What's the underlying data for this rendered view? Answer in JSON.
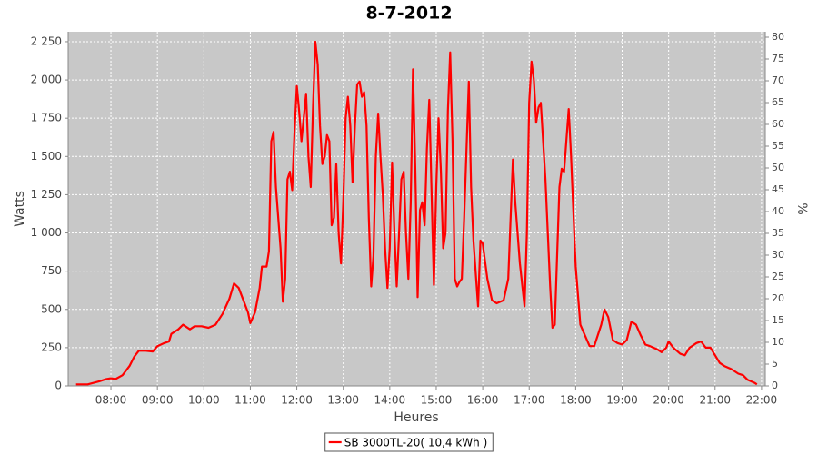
{
  "chart_data": {
    "type": "line",
    "title": "8-7-2012",
    "x_label": "Heures",
    "y_label": "Watts",
    "y2_label": "%",
    "xlim": [
      7.08,
      22.08
    ],
    "xticks": [
      {
        "value": 8,
        "label": "08:00"
      },
      {
        "value": 9,
        "label": "09:00"
      },
      {
        "value": 10,
        "label": "10:00"
      },
      {
        "value": 11,
        "label": "11:00"
      },
      {
        "value": 12,
        "label": "12:00"
      },
      {
        "value": 13,
        "label": "13:00"
      },
      {
        "value": 14,
        "label": "14:00"
      },
      {
        "value": 15,
        "label": "15:00"
      },
      {
        "value": 16,
        "label": "16:00"
      },
      {
        "value": 17,
        "label": "17:00"
      },
      {
        "value": 18,
        "label": "18:00"
      },
      {
        "value": 19,
        "label": "19:00"
      },
      {
        "value": 20,
        "label": "20:00"
      },
      {
        "value": 21,
        "label": "21:00"
      },
      {
        "value": 22,
        "label": "22:00"
      }
    ],
    "ylim": [
      0,
      2315
    ],
    "yticks": [
      0,
      250,
      500,
      750,
      {
        "value": 1000,
        "label": "1 000"
      },
      {
        "value": 1250,
        "label": "1 250"
      },
      {
        "value": 1500,
        "label": "1 500"
      },
      {
        "value": 1750,
        "label": "1 750"
      },
      {
        "value": 2000,
        "label": "2 000"
      },
      {
        "value": 2250,
        "label": "2 250"
      }
    ],
    "y2lim": [
      0,
      81.25
    ],
    "y2ticks": [
      0,
      5,
      10,
      15,
      20,
      25,
      30,
      35,
      40,
      45,
      50,
      55,
      60,
      65,
      70,
      75,
      80
    ],
    "grid": true,
    "legend": "bottom",
    "x": [
      7.25,
      7.5,
      7.75,
      7.9,
      8.0,
      8.1,
      8.25,
      8.4,
      8.5,
      8.6,
      8.75,
      8.9,
      9.0,
      9.15,
      9.25,
      9.3,
      9.45,
      9.55,
      9.7,
      9.8,
      9.95,
      10.1,
      10.25,
      10.4,
      10.55,
      10.65,
      10.75,
      10.85,
      10.95,
      11.0,
      11.1,
      11.2,
      11.25,
      11.35,
      11.4,
      11.45,
      11.5,
      11.55,
      11.65,
      11.7,
      11.75,
      11.8,
      11.85,
      11.9,
      11.95,
      12.0,
      12.05,
      12.1,
      12.2,
      12.25,
      12.3,
      12.35,
      12.4,
      12.45,
      12.5,
      12.55,
      12.6,
      12.65,
      12.7,
      12.75,
      12.8,
      12.85,
      12.9,
      12.95,
      13.0,
      13.05,
      13.1,
      13.15,
      13.2,
      13.25,
      13.3,
      13.35,
      13.4,
      13.45,
      13.5,
      13.55,
      13.6,
      13.65,
      13.7,
      13.75,
      13.8,
      13.85,
      13.9,
      13.95,
      14.0,
      14.05,
      14.1,
      14.15,
      14.2,
      14.25,
      14.3,
      14.35,
      14.4,
      14.45,
      14.5,
      14.55,
      14.6,
      14.65,
      14.7,
      14.75,
      14.8,
      14.85,
      14.9,
      14.95,
      15.0,
      15.05,
      15.1,
      15.15,
      15.2,
      15.25,
      15.3,
      15.35,
      15.4,
      15.45,
      15.5,
      15.55,
      15.6,
      15.7,
      15.75,
      15.8,
      15.9,
      15.95,
      16.0,
      16.1,
      16.2,
      16.3,
      16.45,
      16.55,
      16.6,
      16.65,
      16.7,
      16.8,
      16.9,
      16.95,
      17.0,
      17.05,
      17.1,
      17.15,
      17.2,
      17.25,
      17.35,
      17.45,
      17.5,
      17.55,
      17.65,
      17.7,
      17.75,
      17.85,
      17.9,
      18.0,
      18.1,
      18.2,
      18.3,
      18.4,
      18.55,
      18.62,
      18.7,
      18.8,
      18.9,
      19.0,
      19.1,
      19.2,
      19.3,
      19.4,
      19.5,
      19.6,
      19.75,
      19.85,
      19.95,
      20.0,
      20.1,
      20.25,
      20.35,
      20.45,
      20.6,
      20.7,
      20.8,
      20.9,
      21.0,
      21.1,
      21.2,
      21.35,
      21.5,
      21.6,
      21.7,
      21.85,
      21.9
    ],
    "series": [
      {
        "name": "SB 3000TL-20( 10,4 kWh )",
        "color": "#ff0000",
        "values": [
          10,
          10,
          30,
          45,
          50,
          45,
          70,
          130,
          190,
          230,
          230,
          225,
          260,
          280,
          290,
          340,
          370,
          400,
          370,
          390,
          390,
          380,
          400,
          470,
          570,
          670,
          640,
          560,
          480,
          410,
          480,
          640,
          780,
          780,
          880,
          1600,
          1660,
          1300,
          900,
          550,
          700,
          1350,
          1400,
          1280,
          1650,
          1960,
          1800,
          1600,
          1910,
          1500,
          1300,
          1840,
          2250,
          2100,
          1700,
          1450,
          1500,
          1640,
          1600,
          1050,
          1100,
          1450,
          1000,
          800,
          1200,
          1750,
          1890,
          1700,
          1330,
          1700,
          1970,
          1990,
          1890,
          1920,
          1700,
          1100,
          650,
          850,
          1500,
          1780,
          1500,
          1250,
          900,
          640,
          900,
          1460,
          1000,
          650,
          1000,
          1350,
          1400,
          1000,
          700,
          1200,
          2070,
          1400,
          580,
          1150,
          1200,
          1050,
          1550,
          1870,
          1250,
          660,
          1300,
          1750,
          1400,
          900,
          1000,
          1800,
          2180,
          1600,
          700,
          650,
          680,
          700,
          1100,
          1990,
          1300,
          950,
          520,
          950,
          930,
          700,
          560,
          540,
          560,
          700,
          1100,
          1480,
          1200,
          800,
          520,
          1000,
          1850,
          2120,
          2000,
          1720,
          1820,
          1850,
          1350,
          650,
          380,
          400,
          1300,
          1420,
          1400,
          1810,
          1500,
          780,
          400,
          330,
          260,
          260,
          400,
          500,
          450,
          300,
          280,
          270,
          300,
          420,
          400,
          330,
          270,
          260,
          240,
          220,
          250,
          290,
          250,
          210,
          200,
          250,
          280,
          290,
          250,
          250,
          200,
          150,
          130,
          110,
          80,
          70,
          40,
          20,
          10
        ]
      }
    ]
  }
}
